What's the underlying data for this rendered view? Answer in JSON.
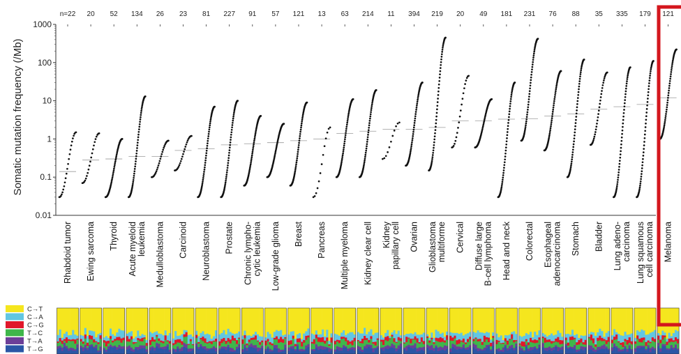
{
  "chart_data": {
    "type": "scatter",
    "ylabel": "Somatic mutation frequency (/Mb)",
    "yscale": "log",
    "ylim": [
      0.01,
      1000
    ],
    "yticks": [
      "0.01",
      "0.1",
      "1",
      "10",
      "100",
      "1000"
    ],
    "categories": [
      {
        "name": [
          "Rhabdoid tumor"
        ],
        "n": "n=22",
        "range": [
          0.03,
          1.5
        ],
        "median": 0.14
      },
      {
        "name": [
          "Ewing sarcoma"
        ],
        "n": "20",
        "range": [
          0.07,
          1.4
        ],
        "median": 0.28
      },
      {
        "name": [
          "Thyroid"
        ],
        "n": "52",
        "range": [
          0.03,
          1.0
        ],
        "median": 0.3
      },
      {
        "name": [
          "Acute myeloid",
          "leukemia"
        ],
        "n": "134",
        "range": [
          0.03,
          13
        ],
        "median": 0.35
      },
      {
        "name": [
          "Medulloblastoma"
        ],
        "n": "26",
        "range": [
          0.1,
          0.9
        ],
        "median": 0.35
      },
      {
        "name": [
          "Carcinoid"
        ],
        "n": "23",
        "range": [
          0.15,
          1.2
        ],
        "median": 0.5
      },
      {
        "name": [
          "Neuroblastoma"
        ],
        "n": "81",
        "range": [
          0.03,
          7
        ],
        "median": 0.55
      },
      {
        "name": [
          "Prostate"
        ],
        "n": "227",
        "range": [
          0.03,
          10
        ],
        "median": 0.7
      },
      {
        "name": [
          "Chronic lympho-",
          "cytic leukemia"
        ],
        "n": "91",
        "range": [
          0.06,
          4
        ],
        "median": 0.75
      },
      {
        "name": [
          "Low-grade glioma"
        ],
        "n": "57",
        "range": [
          0.1,
          2.5
        ],
        "median": 0.8
      },
      {
        "name": [
          "Breast"
        ],
        "n": "121",
        "range": [
          0.06,
          9
        ],
        "median": 0.9
      },
      {
        "name": [
          "Pancreas"
        ],
        "n": "13",
        "range": [
          0.03,
          2.0
        ],
        "median": 1.0
      },
      {
        "name": [
          "Multiple myeloma"
        ],
        "n": "63",
        "range": [
          0.1,
          11
        ],
        "median": 1.4
      },
      {
        "name": [
          "Kidney clear cell"
        ],
        "n": "214",
        "range": [
          0.1,
          19
        ],
        "median": 1.6
      },
      {
        "name": [
          "Kidney",
          "papillary cell"
        ],
        "n": "11",
        "range": [
          0.3,
          2.7
        ],
        "median": 1.8
      },
      {
        "name": [
          "Ovarian"
        ],
        "n": "394",
        "range": [
          0.2,
          30
        ],
        "median": 1.8
      },
      {
        "name": [
          "Glioblastoma",
          "multiforme"
        ],
        "n": "219",
        "range": [
          0.15,
          450
        ],
        "median": 2.0
      },
      {
        "name": [
          "Cervical"
        ],
        "n": "20",
        "range": [
          0.6,
          45
        ],
        "median": 3.0
      },
      {
        "name": [
          "Diffuse large",
          "B-cell lymphoma"
        ],
        "n": "49",
        "range": [
          0.6,
          11
        ],
        "median": 3.0
      },
      {
        "name": [
          "Head and neck"
        ],
        "n": "181",
        "range": [
          0.03,
          30
        ],
        "median": 3.3
      },
      {
        "name": [
          "Colorectal"
        ],
        "n": "231",
        "range": [
          0.9,
          420
        ],
        "median": 3.4
      },
      {
        "name": [
          "Esophageal",
          "adenocarcinoma"
        ],
        "n": "76",
        "range": [
          0.5,
          60
        ],
        "median": 4.0
      },
      {
        "name": [
          "Stomach"
        ],
        "n": "88",
        "range": [
          0.1,
          120
        ],
        "median": 4.5
      },
      {
        "name": [
          "Bladder"
        ],
        "n": "35",
        "range": [
          0.7,
          55
        ],
        "median": 6.0
      },
      {
        "name": [
          "Lung adeno-",
          "carcinoma"
        ],
        "n": "335",
        "range": [
          0.03,
          75
        ],
        "median": 7.0
      },
      {
        "name": [
          "Lung squamous",
          "cell carcinoma"
        ],
        "n": "179",
        "range": [
          0.03,
          110
        ],
        "median": 8.0
      },
      {
        "name": [
          "Melanoma"
        ],
        "n": "121",
        "range": [
          1.0,
          220
        ],
        "median": 12.0
      }
    ],
    "legend": [
      {
        "label": "C→T",
        "color": "#f5e61e"
      },
      {
        "label": "C→A",
        "color": "#62c6e2"
      },
      {
        "label": "C→G",
        "color": "#e0182b"
      },
      {
        "label": "T→C",
        "color": "#3fb64a"
      },
      {
        "label": "T→A",
        "color": "#6c3f98"
      },
      {
        "label": "T→G",
        "color": "#2a56a6"
      }
    ],
    "highlight": {
      "category": "Melanoma",
      "color": "#d4161d"
    }
  }
}
